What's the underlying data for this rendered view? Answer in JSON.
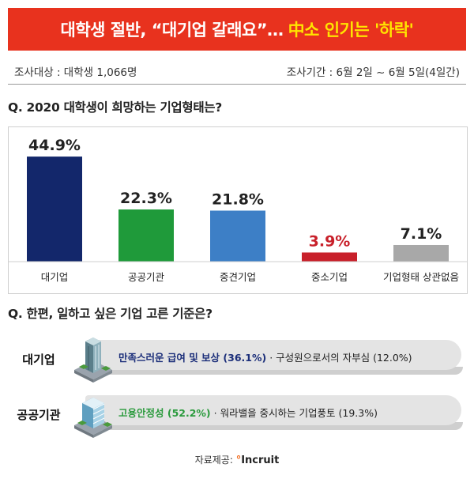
{
  "banner": {
    "title_main": "대학생 절반, “대기업 갈래요”…",
    "title_highlight": "中소 인기는 '하락'"
  },
  "survey": {
    "target": "조사대상 : 대학생 1,066명",
    "period": "조사기간 : 6월 2일 ~ 6월 5일(4일간)"
  },
  "question1": "Q. 2020 대학생이 희망하는 기업형태는?",
  "question2": "Q. 한편, 일하고 싶은 기업 고른 기준은?",
  "chart_data": {
    "type": "bar",
    "title": "Q. 2020 대학생이 희망하는 기업형태는?",
    "categories": [
      "대기업",
      "공공기관",
      "중견기업",
      "중소기업",
      "기업형태 상관없음"
    ],
    "values": [
      44.9,
      22.3,
      21.8,
      3.9,
      7.1
    ],
    "value_labels": [
      "44.9%",
      "22.3%",
      "21.8%",
      "3.9%",
      "7.1%"
    ],
    "colors": [
      "#13276b",
      "#1f9a3a",
      "#3d7fc6",
      "#c8202a",
      "#a8a8a8"
    ],
    "label_colors": [
      "#222222",
      "#222222",
      "#222222",
      "#c8202a",
      "#222222"
    ],
    "ylim": [
      0,
      50
    ],
    "grid": false,
    "legend": "none"
  },
  "criteria": [
    {
      "label": "대기업",
      "primary": "만족스러운 급여 및 보상 (36.1%)",
      "primary_color": "#1c2f7a",
      "secondary": "· 구성원으로서의 자부심 (12.0%)",
      "icon": "office-tower-icon"
    },
    {
      "label": "공공기관",
      "primary": "고용안정성 (52.2%)",
      "primary_color": "#2a9a3c",
      "secondary": "· 워라밸을 중시하는 기업풍토 (19.3%)",
      "icon": "office-building-icon"
    }
  ],
  "source": {
    "label": "자료제공:",
    "logo": "Incruit"
  }
}
